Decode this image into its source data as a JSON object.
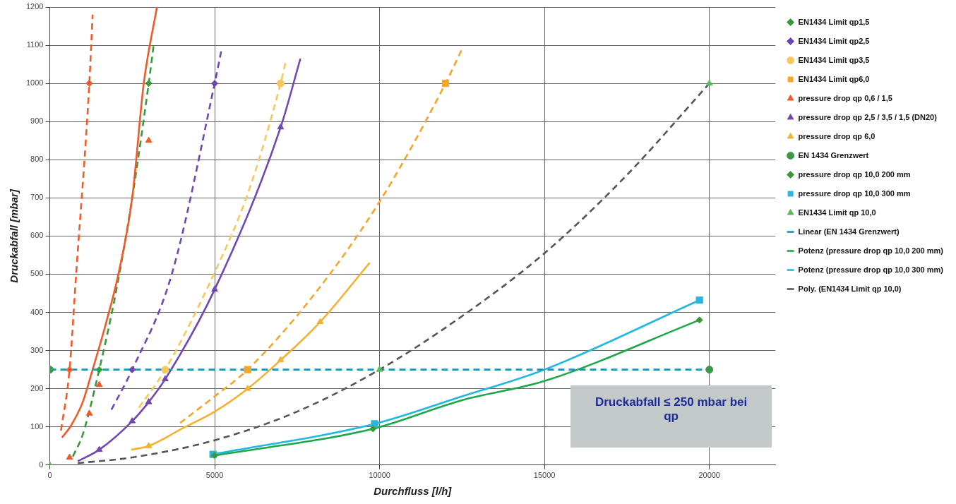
{
  "chart_data": {
    "type": "scatter",
    "xlabel": "Durchfluss [l/h]",
    "ylabel": "Druckabfall [mbar]",
    "xlim": [
      0,
      22000
    ],
    "xticks": [
      0,
      5000,
      10000,
      15000,
      20000
    ],
    "ylim": [
      0,
      1200
    ],
    "yticks": [
      0,
      100,
      200,
      300,
      400,
      500,
      600,
      700,
      800,
      900,
      1000,
      1100,
      1200
    ],
    "grid": true,
    "legend": "right",
    "annotations": [
      "Druckabfall ≤ 250 mbar bei qp"
    ],
    "series": [
      {
        "name": "EN1434 Limit qp1,5",
        "color": "#3a9a3a",
        "marker": "diamond",
        "x": [
          1500,
          3000
        ],
        "values": [
          250,
          1000
        ]
      },
      {
        "name": "EN1434 Limit qp2,5",
        "color": "#6a44b0",
        "marker": "diamond",
        "x": [
          2500,
          5000
        ],
        "values": [
          250,
          1000
        ]
      },
      {
        "name": "EN1434 Limit qp3,5",
        "color": "#f8c860",
        "marker": "circle",
        "x": [
          3500,
          7000
        ],
        "values": [
          250,
          1000
        ]
      },
      {
        "name": "EN1434 Limit qp6,0",
        "color": "#f5a52a",
        "marker": "square",
        "x": [
          6000,
          12000
        ],
        "values": [
          250,
          1000
        ]
      },
      {
        "name": "pressure drop qp 0,6 / 1,5",
        "color": "#f05a28",
        "marker": "triangle",
        "x": [
          600,
          1200,
          1500,
          3000
        ],
        "values": [
          20,
          135,
          210,
          850
        ]
      },
      {
        "name": "pressure drop qp 2,5 / 3,5 / 1,5 (DN20)",
        "color": "#7048b0",
        "marker": "triangle",
        "x": [
          1500,
          2500,
          3000,
          3500,
          5000,
          7000
        ],
        "values": [
          40,
          115,
          165,
          225,
          460,
          885
        ]
      },
      {
        "name": "pressure drop qp 6,0",
        "color": "#f5b030",
        "marker": "triangle",
        "x": [
          3000,
          6000,
          7000,
          8200
        ],
        "values": [
          50,
          200,
          275,
          375
        ]
      },
      {
        "name": "EN 1434 Grenzwert",
        "color": "#3a9a48",
        "marker": "circle",
        "x": [
          0,
          20000
        ],
        "values": [
          250,
          250
        ]
      },
      {
        "name": "pressure drop qp 10,0 200 mm",
        "color": "#3a9a3a",
        "marker": "diamond",
        "x": [
          5000,
          9800,
          19700
        ],
        "values": [
          25,
          95,
          380
        ]
      },
      {
        "name": "pressure drop qp 10,0 300 mm",
        "color": "#2bb5e0",
        "marker": "square",
        "x": [
          4950,
          9850,
          19700
        ],
        "values": [
          28,
          108,
          432
        ]
      },
      {
        "name": "EN1434 Limit qp 10,0",
        "color": "#5cb85c",
        "marker": "triangle",
        "x": [
          0,
          10000,
          20000
        ],
        "values": [
          0,
          250,
          1000
        ]
      },
      {
        "name": "Linear (EN 1434 Grenzwert)",
        "type": "line",
        "color": "#1e90c0",
        "marker": "none",
        "line_style": "dashed",
        "x": [
          0,
          20000
        ],
        "values": [
          250,
          250
        ]
      },
      {
        "name": "Potenz (pressure drop qp 10,0 200 mm)",
        "type": "line",
        "color": "#1aa84a",
        "marker": "none",
        "line_style": "solid",
        "x": [
          5000,
          9800,
          12500,
          15000,
          19700
        ],
        "values": [
          25,
          95,
          170,
          220,
          380
        ]
      },
      {
        "name": "Potenz (pressure drop qp 10,0 300 mm)",
        "type": "line",
        "color": "#20b8e0",
        "marker": "none",
        "line_style": "solid",
        "x": [
          4950,
          9850,
          12500,
          15000,
          19700
        ],
        "values": [
          28,
          108,
          180,
          250,
          432
        ]
      },
      {
        "name": "Poly. (EN1434 Limit qp 10,0)",
        "type": "line",
        "color": "#555555",
        "marker": "none",
        "line_style": "dashed",
        "x": [
          850,
          2500,
          5000,
          7500,
          10000,
          12500,
          15000,
          17500,
          20000
        ],
        "values": [
          5,
          20,
          65,
          140,
          250,
          390,
          555,
          760,
          1000
        ]
      },
      {
        "color": "#f05a28",
        "marker": "diamond",
        "x": [
          600,
          1200
        ],
        "values": [
          250,
          1000
        ]
      },
      {
        "type": "line",
        "color": "#f05a28",
        "marker": "none",
        "line_style": "solid",
        "x": [
          370,
          620,
          1000,
          1300,
          1700,
          2080,
          2500,
          2850,
          3250
        ],
        "values": [
          72,
          100,
          165,
          250,
          370,
          500,
          700,
          1000,
          1200
        ]
      },
      {
        "type": "line",
        "color": "#f05a28",
        "marker": "none",
        "line_style": "dashed",
        "x": [
          340,
          600,
          800,
          1200,
          1300
        ],
        "values": [
          90,
          250,
          500,
          1000,
          1180
        ]
      },
      {
        "type": "line",
        "color": "#3a9a3a",
        "marker": "none",
        "line_style": "dashed",
        "x": [
          700,
          1000,
          1500,
          2000,
          2500,
          3000,
          3150
        ],
        "values": [
          22,
          80,
          250,
          450,
          700,
          1000,
          1100
        ]
      },
      {
        "type": "line",
        "color": "#7048b0",
        "marker": "none",
        "line_style": "solid",
        "x": [
          850,
          1500,
          2500,
          3000,
          3500,
          5000,
          7000,
          7600
        ],
        "values": [
          10,
          40,
          115,
          165,
          225,
          460,
          885,
          1065
        ]
      },
      {
        "type": "line",
        "color": "#7048b0",
        "marker": "none",
        "line_style": "dashed",
        "x": [
          1870,
          2500,
          3700,
          5000,
          5200
        ],
        "values": [
          145,
          250,
          500,
          1000,
          1085
        ]
      },
      {
        "type": "line",
        "color": "#f8c860",
        "marker": "none",
        "line_style": "dashed",
        "x": [
          2700,
          3500,
          5000,
          6000,
          7000,
          7150
        ],
        "values": [
          150,
          250,
          505,
          710,
          1000,
          1055
        ]
      },
      {
        "type": "line",
        "color": "#f5b030",
        "marker": "none",
        "line_style": "solid",
        "x": [
          2470,
          3000,
          4000,
          5000,
          6000,
          7000,
          8200,
          9700
        ],
        "values": [
          40,
          50,
          95,
          140,
          200,
          275,
          375,
          530
        ]
      },
      {
        "type": "line",
        "color": "#f5a52a",
        "marker": "none",
        "line_style": "dashed",
        "x": [
          3950,
          5000,
          6000,
          8000,
          10000,
          12000,
          12500
        ],
        "values": [
          110,
          180,
          250,
          445,
          690,
          1000,
          1090
        ]
      }
    ]
  }
}
